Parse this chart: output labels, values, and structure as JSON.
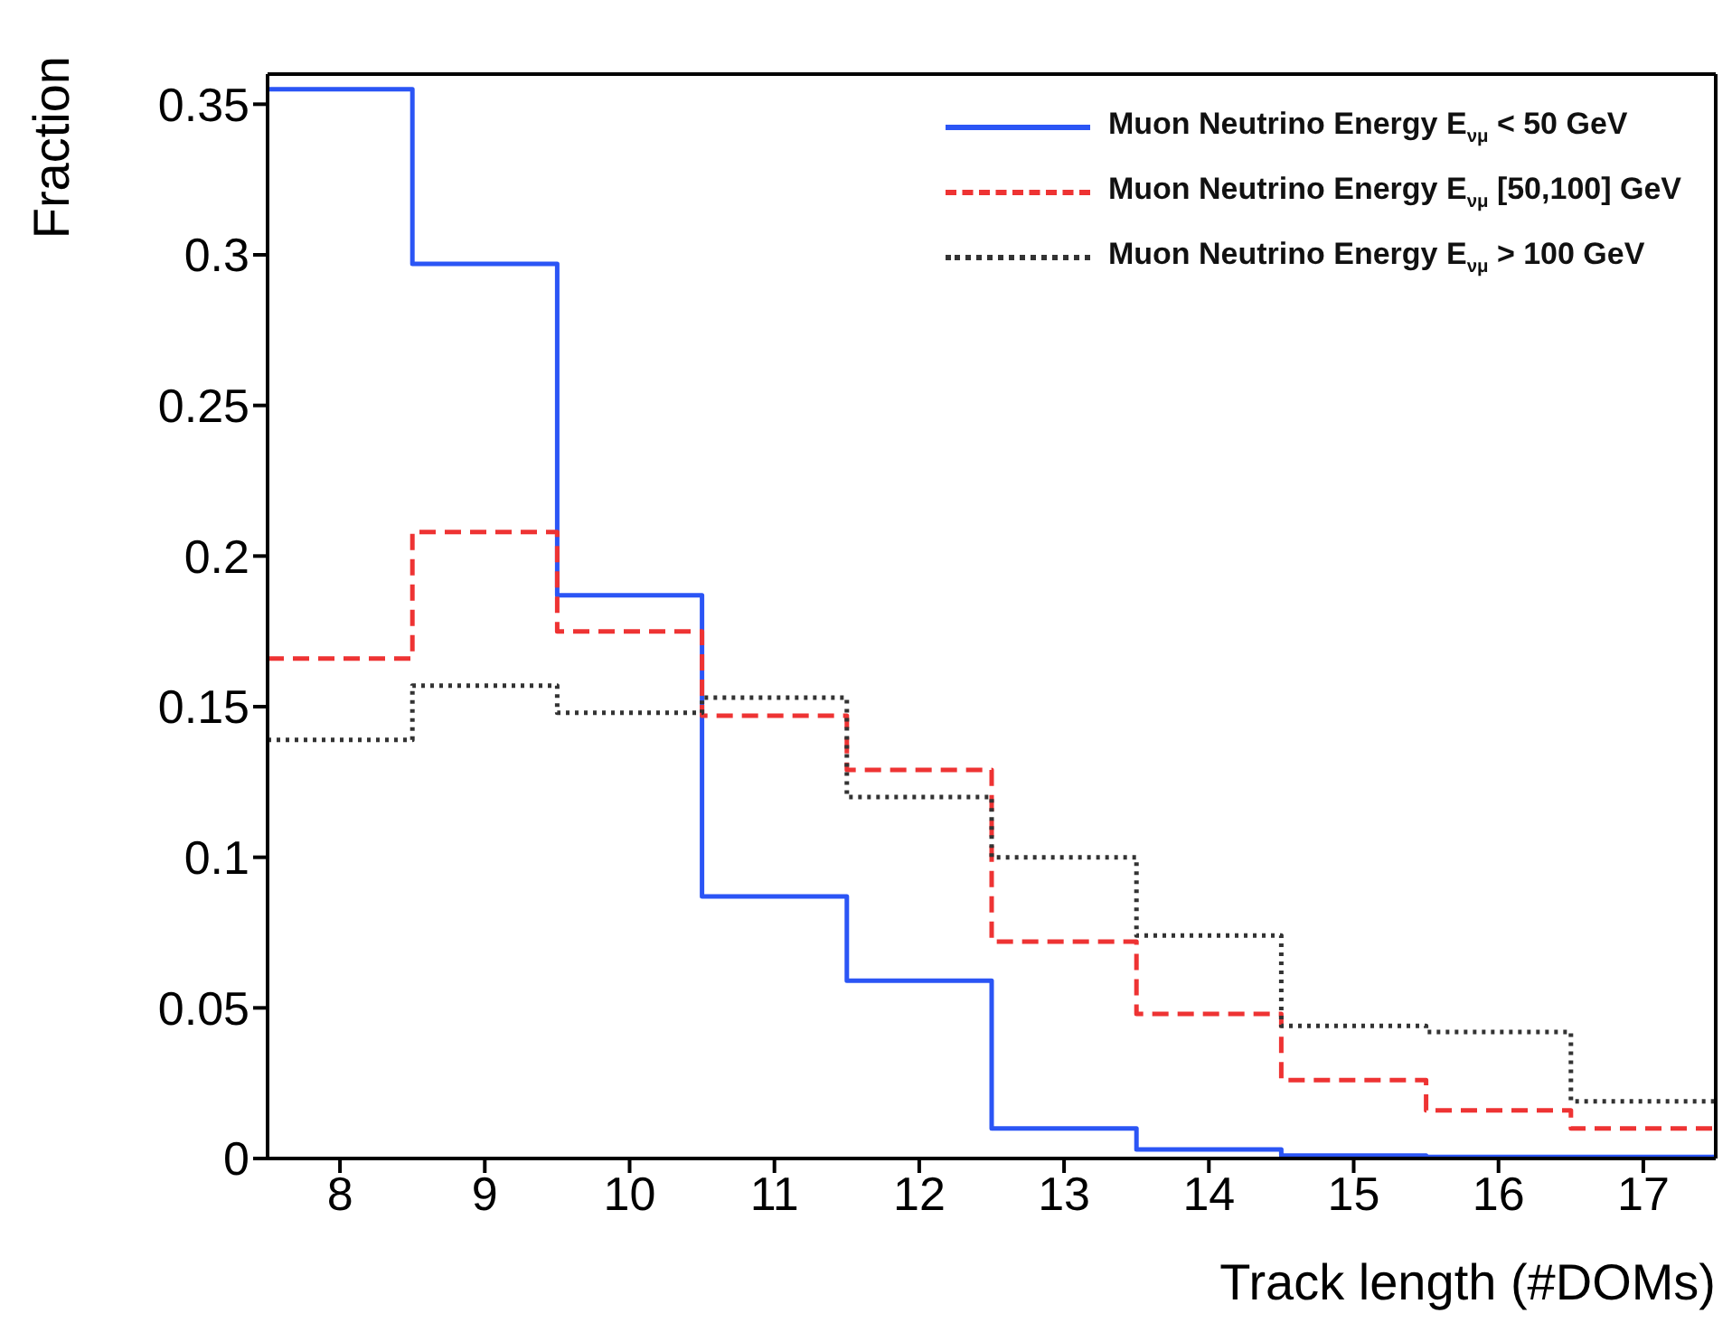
{
  "chart_data": {
    "type": "histogram",
    "xlabel": "Track length (#DOMs)",
    "ylabel": "Fraction",
    "bins": [
      7.5,
      8.5,
      9.5,
      10.5,
      11.5,
      12.5,
      13.5,
      14.5,
      15.5,
      16.5,
      17.5
    ],
    "series": [
      {
        "name": "Muon Neutrino Energy E$_{νμ}$ < 50 GeV",
        "color": "#2b55f5",
        "line_style": "solid",
        "values": [
          0.355,
          0.297,
          0.187,
          0.087,
          0.059,
          0.01,
          0.003,
          0.001,
          0.0005,
          0.0005
        ]
      },
      {
        "name": "Muon Neutrino Energy E$_{νμ}$ [50,100] GeV",
        "color": "#ee3333",
        "line_style": "dashed",
        "values": [
          0.166,
          0.208,
          0.175,
          0.147,
          0.129,
          0.072,
          0.048,
          0.026,
          0.016,
          0.01
        ]
      },
      {
        "name": "Muon Neutrino Energy E$_{νμ}$ > 100 GeV",
        "color": "#333333",
        "line_style": "dotted",
        "values": [
          0.139,
          0.157,
          0.148,
          0.153,
          0.12,
          0.1,
          0.074,
          0.044,
          0.042,
          0.019
        ]
      }
    ],
    "xlim": [
      7.5,
      17.5
    ],
    "xticks": [
      8,
      9,
      10,
      11,
      12,
      13,
      14,
      15,
      16,
      17
    ],
    "ylim": [
      0,
      0.36
    ],
    "yticks": [
      0,
      0.05,
      0.1,
      0.15,
      0.2,
      0.25,
      0.3,
      0.35
    ],
    "grid": false,
    "legend": "top right"
  }
}
